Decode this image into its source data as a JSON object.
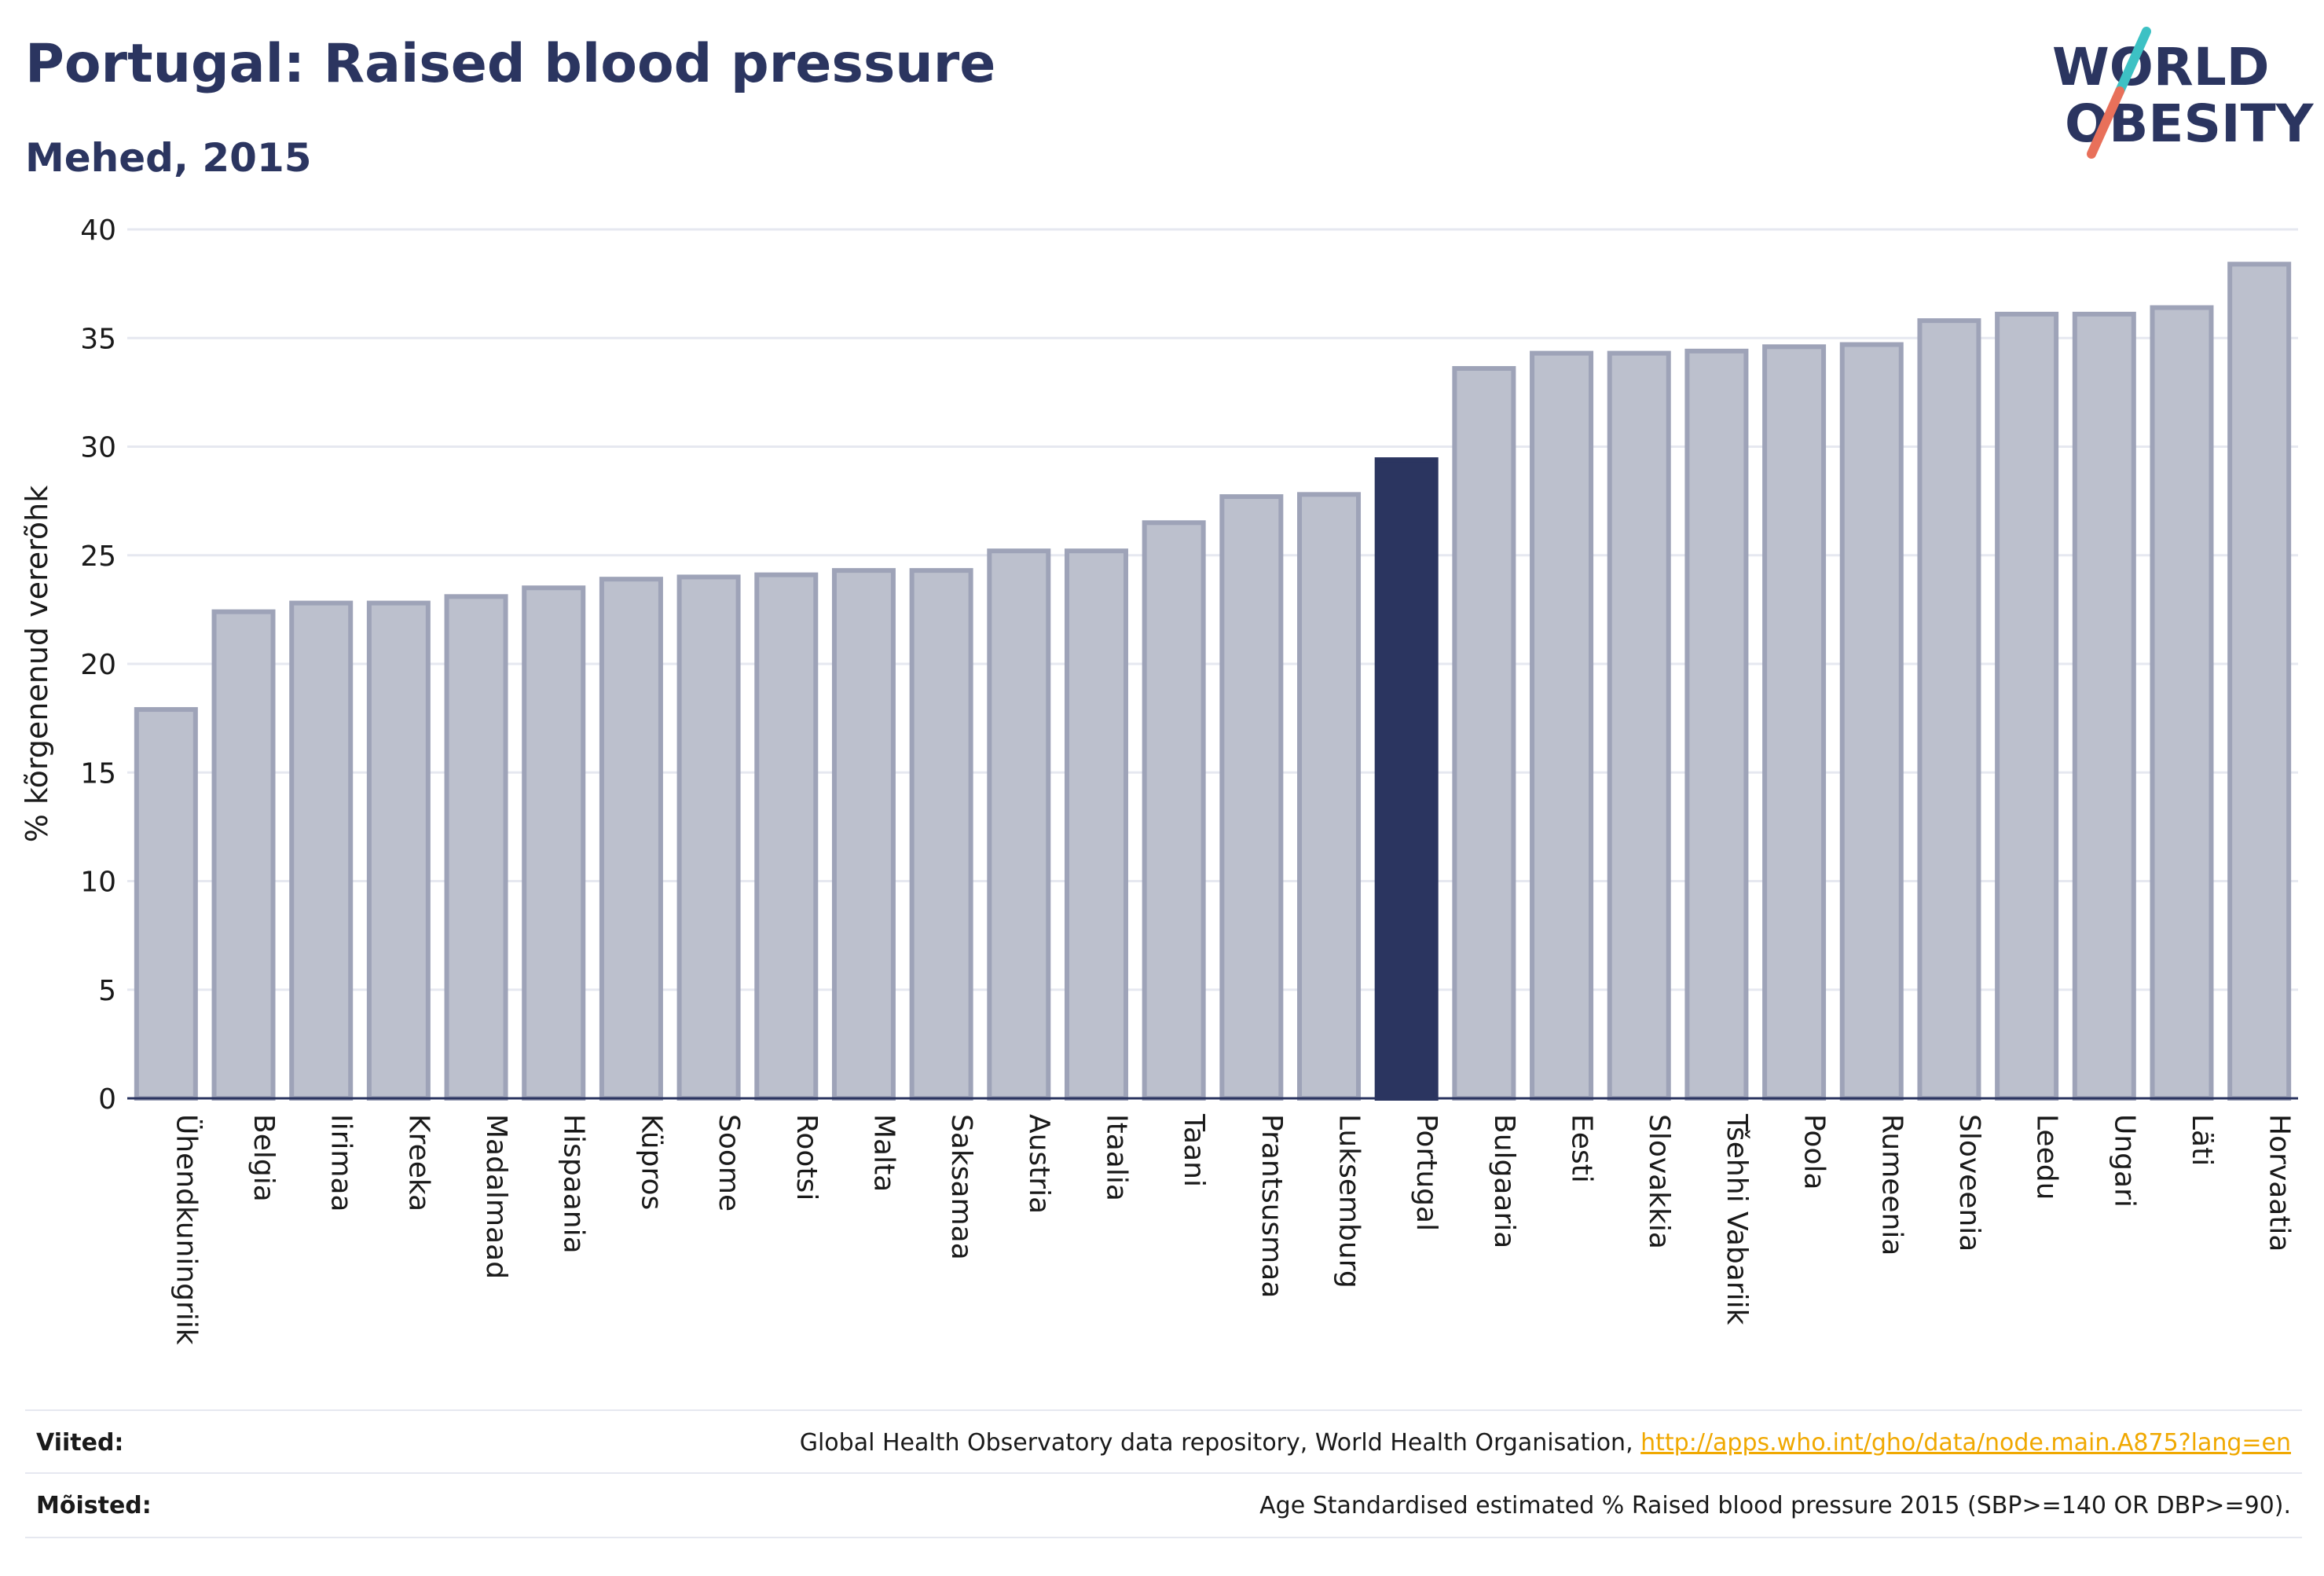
{
  "header": {
    "title": "Portugal: Raised blood pressure",
    "subtitle": "Mehed, 2015"
  },
  "logo": {
    "line1": "WORLD",
    "line2": "OBESITY",
    "slash_colors": [
      "#3dc1c4",
      "#e8705a"
    ],
    "text_color": "#2b3560"
  },
  "colors": {
    "bar": "#bcc0cd",
    "bar_border": "#9ea3b8",
    "highlight": "#2b3560",
    "axis": "#2b3560",
    "grid": "#e6e8f0"
  },
  "chart_data": {
    "type": "bar",
    "ylabel": "% kõrgenenud vererõhk",
    "ylim": [
      0,
      40
    ],
    "yticks": [
      0,
      5,
      10,
      15,
      20,
      25,
      30,
      35,
      40
    ],
    "highlight": "Portugal",
    "categories": [
      "Ühendkuningriik",
      "Belgia",
      "Iirimaa",
      "Kreeka",
      "Madalmaad",
      "Hispaania",
      "Küpros",
      "Soome",
      "Rootsi",
      "Malta",
      "Saksamaa",
      "Austria",
      "Itaalia",
      "Taani",
      "Prantsusmaa",
      "Luksemburg",
      "Portugal",
      "Bulgaaria",
      "Eesti",
      "Slovakkia",
      "Tšehhi Vabariik",
      "Poola",
      "Rumeenia",
      "Sloveenia",
      "Leedu",
      "Ungari",
      "Läti",
      "Horvaatia"
    ],
    "values": [
      17.9,
      22.4,
      22.8,
      22.8,
      23.1,
      23.5,
      23.9,
      24.0,
      24.1,
      24.3,
      24.3,
      25.2,
      25.2,
      26.5,
      27.7,
      27.8,
      29.4,
      33.6,
      34.3,
      34.3,
      34.4,
      34.6,
      34.7,
      35.8,
      36.1,
      36.1,
      36.4,
      38.4
    ],
    "grid": true,
    "legend": "none"
  },
  "footer": {
    "sources_label": "Viited:",
    "sources_text": "Global Health Observatory data repository, World Health Organisation, ",
    "sources_link": "http://apps.who.int/gho/data/node.main.A875?lang=en",
    "definitions_label": "Mõisted:",
    "definitions_text": "Age Standardised estimated % Raised blood pressure 2015 (SBP>=140 OR DBP>=90)."
  }
}
